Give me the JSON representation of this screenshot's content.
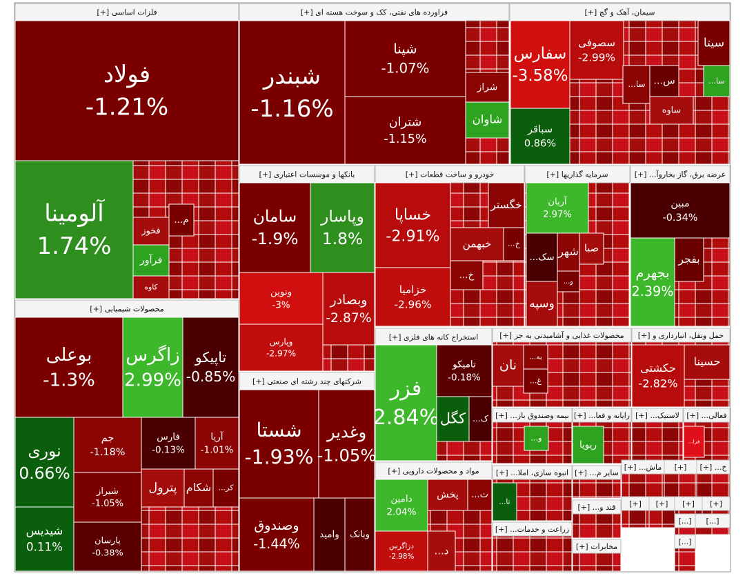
{
  "sectors": [
    {
      "title": "فلزات اساسی [+]",
      "tiles": [
        {
          "name": "فولاد",
          "change": "-1.21%",
          "color": "#7a0000"
        },
        {
          "name": "آلومینا",
          "change": "1.74%",
          "color": "#2e8f1e"
        },
        {
          "name": "فخوز",
          "color": "#a50d0d"
        },
        {
          "name": "فرآور",
          "color": "#2ea31f"
        },
        {
          "name": "کاوه",
          "color": "#a50d0d"
        },
        {
          "name": "م...",
          "color": "#7a0000"
        }
      ]
    },
    {
      "title": "فراورده های نفتی، کک و سوخت هسته ای [+]",
      "tiles": [
        {
          "name": "شبندر",
          "change": "-1.16%",
          "color": "#7a0000"
        },
        {
          "name": "شپنا",
          "change": "-1.07%",
          "color": "#7a0000"
        },
        {
          "name": "شتران",
          "change": "-1.15%",
          "color": "#7a0000"
        },
        {
          "name": "شراز",
          "color": "#8b0505"
        },
        {
          "name": "شاوان",
          "color": "#2ea31f"
        }
      ]
    },
    {
      "title": "سیمان، آهک و گچ [+]",
      "tiles": [
        {
          "name": "سفارس",
          "change": "-3.58%",
          "color": "#d10f0f"
        },
        {
          "name": "سباقر",
          "change": "0.86%",
          "color": "#0b5e0b"
        },
        {
          "name": "سصوفی",
          "change": "-2.99%",
          "color": "#b80b0b"
        },
        {
          "name": "سیتا",
          "color": "#7a0000"
        },
        {
          "name": "سا...",
          "color": "#8b0505"
        },
        {
          "name": "س...",
          "color": "#6a0000"
        },
        {
          "name": "ساوه",
          "color": "#a50d0d"
        },
        {
          "name": "سا...",
          "color": "#2ea31f"
        }
      ]
    },
    {
      "title": "بانکها و موسسات اعتباری [+]",
      "tiles": [
        {
          "name": "سامان",
          "change": "-1.9%",
          "color": "#7a0000"
        },
        {
          "name": "وپاسار",
          "change": "1.8%",
          "color": "#2e8f1e"
        },
        {
          "name": "ونوین",
          "change": "-3%",
          "color": "#d10f0f"
        },
        {
          "name": "وبصادر",
          "change": "-2.87%",
          "color": "#b80b0b"
        },
        {
          "name": "وپارس",
          "change": "-2.97%",
          "color": "#c20d0d"
        }
      ]
    },
    {
      "title": "خودرو و ساخت قطعات [+]",
      "tiles": [
        {
          "name": "خساپا",
          "change": "-2.91%",
          "color": "#b80b0b"
        },
        {
          "name": "خزامیا",
          "change": "-2.96%",
          "color": "#c20d0d"
        },
        {
          "name": "خگستر",
          "color": "#8b0505"
        },
        {
          "name": "خبهمن",
          "color": "#a50d0d"
        },
        {
          "name": "خ...",
          "color": "#7a0000"
        },
        {
          "name": "خ...",
          "color": "#8b0505"
        }
      ]
    },
    {
      "title": "سرمایه گذاریها [+]",
      "tiles": [
        {
          "name": "آریان",
          "change": "2.97%",
          "color": "#3cb82a"
        },
        {
          "name": "سک...",
          "color": "#4a0000"
        },
        {
          "name": "شهر",
          "color": "#8b0505"
        },
        {
          "name": "صبا",
          "color": "#a50d0d"
        },
        {
          "name": "و...",
          "color": "#7a0000"
        },
        {
          "name": "وسپه",
          "color": "#a50d0d"
        }
      ]
    },
    {
      "title": "عرضه برق، گاز بخاروآ... [+]",
      "tiles": [
        {
          "name": "مبین",
          "change": "-0.34%",
          "color": "#4a0000"
        },
        {
          "name": "بجهرم",
          "change": "2.39%",
          "color": "#3cb82a"
        },
        {
          "name": "بفجر",
          "color": "#6a0000"
        }
      ]
    },
    {
      "title": "محصولات شیمیایی [+]",
      "tiles": [
        {
          "name": "بوعلی",
          "change": "-1.3%",
          "color": "#7a0000"
        },
        {
          "name": "زاگرس",
          "change": "2.99%",
          "color": "#3cb82a"
        },
        {
          "name": "تاپیکو",
          "change": "-0.85%",
          "color": "#4a0000"
        },
        {
          "name": "نوری",
          "change": "0.66%",
          "color": "#0b5e0b"
        },
        {
          "name": "شیدیس",
          "change": "0.11%",
          "color": "#0b5e0b"
        },
        {
          "name": "جم",
          "change": "-1.18%",
          "color": "#8b0505"
        },
        {
          "name": "شیراز",
          "change": "-1.05%",
          "color": "#7a0000"
        },
        {
          "name": "پارسان",
          "change": "-0.38%",
          "color": "#5a0000"
        },
        {
          "name": "فارس",
          "change": "-0.13%",
          "color": "#4a0000"
        },
        {
          "name": "آریا",
          "change": "-1.01%",
          "color": "#8b0505"
        },
        {
          "name": "پترول",
          "color": "#a50d0d"
        },
        {
          "name": "شکام",
          "color": "#8b0505"
        },
        {
          "name": "کر...",
          "color": "#7a0000"
        }
      ]
    },
    {
      "title": "شرکتهای چند رشته ای صنعتی [+]",
      "tiles": [
        {
          "name": "شستا",
          "change": "-1.93%",
          "color": "#7a0000"
        },
        {
          "name": "وغدیر",
          "change": "-1.05%",
          "color": "#7a0000"
        },
        {
          "name": "وصندوق",
          "change": "-1.44%",
          "color": "#7a0000"
        },
        {
          "name": "وامید",
          "color": "#4a0000"
        },
        {
          "name": "وبانک",
          "color": "#5a0000"
        }
      ]
    },
    {
      "title": "استخراج کانه های فلزی [+]",
      "tiles": [
        {
          "name": "فزر",
          "change": "2.84%",
          "color": "#3cb82a"
        },
        {
          "name": "تامیکو",
          "change": "-0.18%",
          "color": "#5a0000"
        },
        {
          "name": "کگل",
          "color": "#0b5e0b"
        },
        {
          "name": "ک...",
          "color": "#4a0000"
        }
      ]
    },
    {
      "title": "مواد و محصولات دارویی [+]",
      "tiles": [
        {
          "name": "دامین",
          "change": "2.04%",
          "color": "#3cb82a"
        },
        {
          "name": "پخش",
          "color": "#a50d0d"
        },
        {
          "name": "ت...",
          "color": "#8b0505"
        },
        {
          "name": "دزاگرس",
          "change": "-2.98%",
          "color": "#c20d0d"
        },
        {
          "name": "د...",
          "color": "#a50d0d"
        }
      ]
    },
    {
      "title": "محصولات غذایی و آشامیدنی به جز [+]",
      "tiles": [
        {
          "name": "نان",
          "color": "#a50d0d"
        },
        {
          "name": "به...",
          "color": "#8b0505"
        },
        {
          "name": "غ...",
          "color": "#7a0000"
        }
      ]
    },
    {
      "title": "حمل ونقل، انبارداری و [+]",
      "tiles": [
        {
          "name": "حکشتی",
          "change": "-2.82%",
          "color": "#b80b0b"
        },
        {
          "name": "حسینا",
          "color": "#a50d0d"
        }
      ]
    },
    {
      "title": "بیمه وصندوق باز... [+]",
      "tiles": [
        {
          "name": "و...",
          "color": "#2ea31f"
        }
      ]
    },
    {
      "title": "رایانه و فعا... [+]",
      "tiles": [
        {
          "name": "رپویا",
          "color": "#2ea31f"
        }
      ]
    },
    {
      "title": "لاستیک... [+]",
      "tiles": []
    },
    {
      "title": "فعالی... [+]",
      "tiles": [
        {
          "name": "فرا...",
          "color": "#e0101a"
        }
      ]
    },
    {
      "title": "انبوه سازی، املا... [+]",
      "tiles": [
        {
          "name": "تا...",
          "color": "#0b5e0b"
        }
      ]
    },
    {
      "title": "سایر م... [+]",
      "tiles": []
    },
    {
      "title": "ماش... [+]",
      "tiles": []
    },
    {
      "title": "[+]",
      "tiles": []
    },
    {
      "title": "خ... [+]",
      "tiles": []
    },
    {
      "title": "زراعت و خدمات... [+]",
      "tiles": []
    },
    {
      "title": "قند و... [+]",
      "tiles": []
    },
    {
      "title": "مخابرات [+]",
      "tiles": []
    },
    {
      "title": "[+]",
      "tiles": []
    },
    {
      "title": "[+]",
      "tiles": []
    },
    {
      "title": "[+]",
      "tiles": []
    },
    {
      "title": "[+]",
      "tiles": []
    },
    {
      "title": "[...]",
      "tiles": []
    },
    {
      "title": "[...]",
      "tiles": []
    },
    {
      "title": "[...]",
      "tiles": []
    }
  ]
}
